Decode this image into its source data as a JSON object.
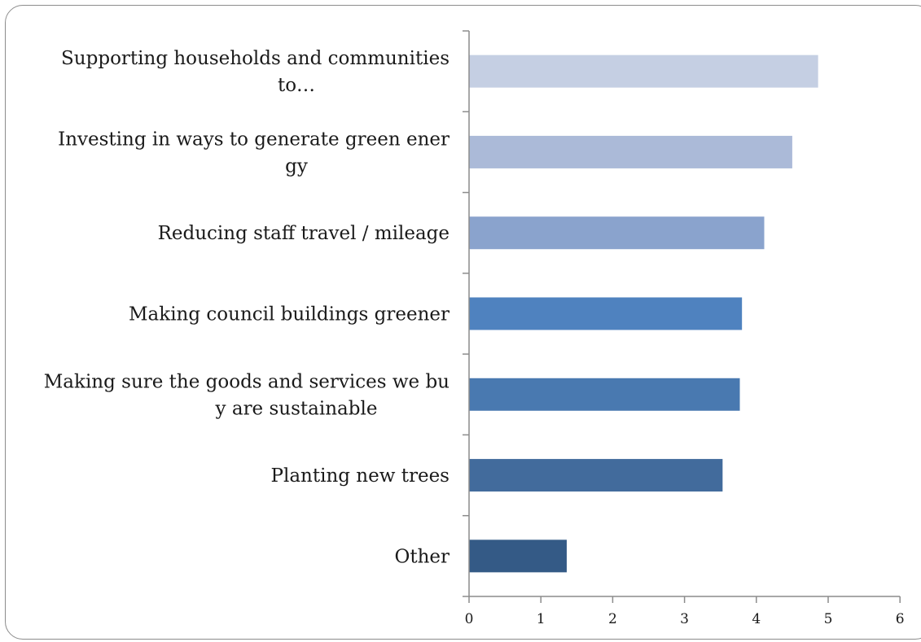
{
  "chart_data": {
    "type": "bar",
    "orientation": "horizontal",
    "title": "",
    "xlabel": "",
    "ylabel": "",
    "xlim": [
      0,
      6
    ],
    "x_ticks": [
      "0",
      "1",
      "2",
      "3",
      "4",
      "5",
      "6"
    ],
    "grid": false,
    "legend": "none",
    "categories": [
      [
        "Supporting households and communities",
        "to…"
      ],
      [
        "Investing in ways to generate green ener",
        "gy"
      ],
      [
        "Reducing staff travel / mileage"
      ],
      [
        "Making council buildings greener"
      ],
      [
        "Making sure the goods and services we bu",
        "y are sustainable"
      ],
      [
        "Planting new trees"
      ],
      [
        "Other"
      ]
    ],
    "values": [
      4.86,
      4.5,
      4.11,
      3.8,
      3.77,
      3.53,
      1.36
    ],
    "colors": [
      "#c5cfe3",
      "#abbad8",
      "#8aa3cd",
      "#4f82bf",
      "#4979b0",
      "#426b9c",
      "#345a86"
    ]
  }
}
